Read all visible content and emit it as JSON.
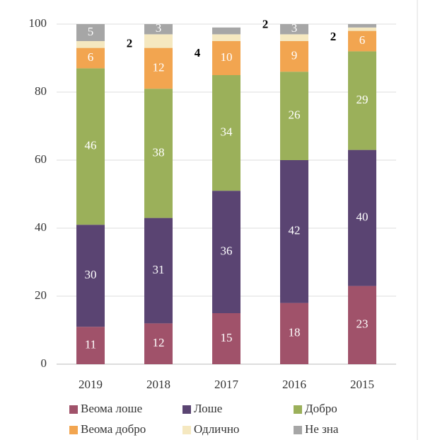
{
  "chart_data": {
    "type": "stacked_bar",
    "categories": [
      "2019",
      "2018",
      "2017",
      "2016",
      "2015"
    ],
    "series": [
      {
        "name": "Веома лоше",
        "color": "#a0526a",
        "values": [
          11,
          12,
          15,
          18,
          23
        ]
      },
      {
        "name": "Лоше",
        "color": "#5a4472",
        "values": [
          30,
          31,
          36,
          42,
          40
        ]
      },
      {
        "name": "Добро",
        "color": "#9bb05a",
        "values": [
          46,
          38,
          34,
          26,
          29
        ]
      },
      {
        "name": "Веома добро",
        "color": "#f2a550",
        "values": [
          6,
          12,
          10,
          9,
          6
        ]
      },
      {
        "name": "Одлично",
        "color": "#f5e8c0",
        "values": [
          2,
          4,
          2,
          2,
          1
        ],
        "value_labels": [
          "2",
          "4",
          null,
          "2",
          null
        ]
      },
      {
        "name": "Не зна",
        "color": "#a6a6a6",
        "values": [
          5,
          3,
          2,
          3,
          1
        ],
        "value_labels": [
          "5",
          "3",
          "2",
          "3",
          null
        ]
      }
    ],
    "ylim": [
      0,
      100
    ],
    "yticks": [
      0,
      20,
      40,
      60,
      80,
      100
    ],
    "grid": true
  }
}
